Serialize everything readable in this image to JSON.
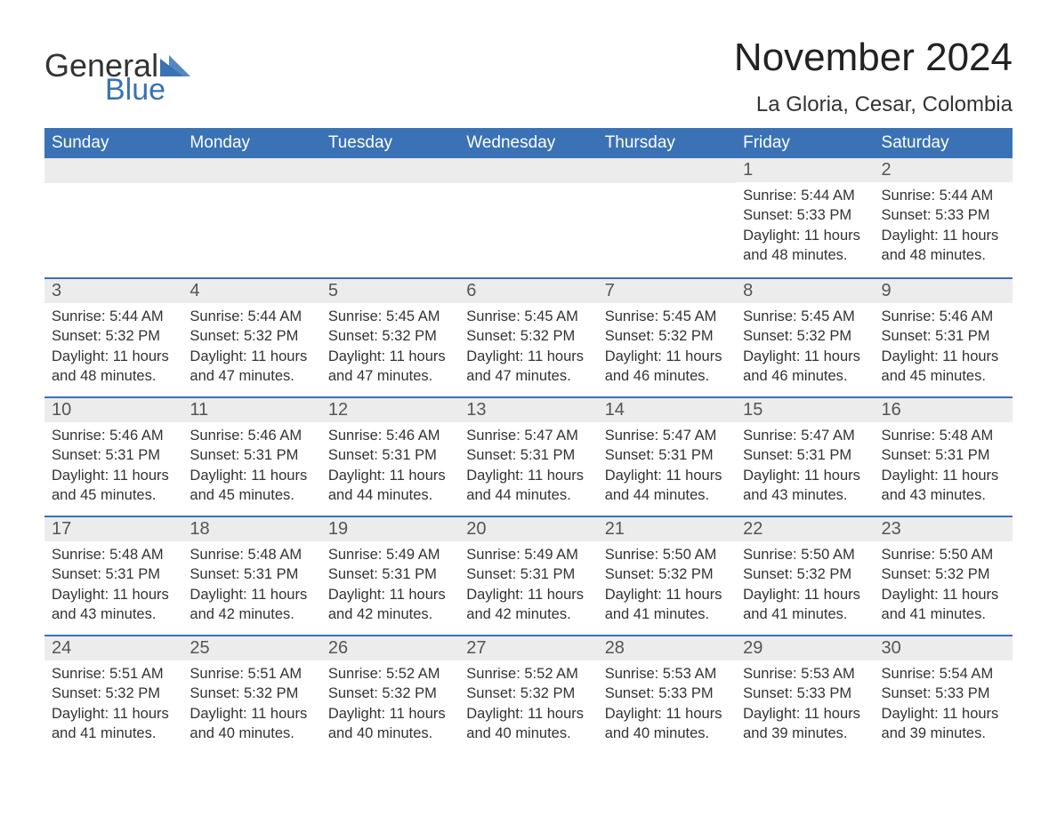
{
  "logo": {
    "word1": "General",
    "word2": "Blue"
  },
  "title": "November 2024",
  "location": "La Gloria, Cesar, Colombia",
  "colors": {
    "header_bg": "#3a72b5",
    "header_text": "#ffffff",
    "daynum_bg": "#ececec",
    "row_divider": "#3a72b5",
    "body_text": "#333333",
    "logo_blue": "#3a72b5"
  },
  "fonts": {
    "title_size_pt": 33,
    "location_size_pt": 18,
    "header_size_pt": 14,
    "daynum_size_pt": 15,
    "body_size_pt": 12
  },
  "weekdays": [
    "Sunday",
    "Monday",
    "Tuesday",
    "Wednesday",
    "Thursday",
    "Friday",
    "Saturday"
  ],
  "labels": {
    "sunrise": "Sunrise:",
    "sunset": "Sunset:",
    "daylight": "Daylight:"
  },
  "weeks": [
    [
      null,
      null,
      null,
      null,
      null,
      {
        "n": "1",
        "sunrise": "5:44 AM",
        "sunset": "5:33 PM",
        "daylight": "11 hours and 48 minutes."
      },
      {
        "n": "2",
        "sunrise": "5:44 AM",
        "sunset": "5:33 PM",
        "daylight": "11 hours and 48 minutes."
      }
    ],
    [
      {
        "n": "3",
        "sunrise": "5:44 AM",
        "sunset": "5:32 PM",
        "daylight": "11 hours and 48 minutes."
      },
      {
        "n": "4",
        "sunrise": "5:44 AM",
        "sunset": "5:32 PM",
        "daylight": "11 hours and 47 minutes."
      },
      {
        "n": "5",
        "sunrise": "5:45 AM",
        "sunset": "5:32 PM",
        "daylight": "11 hours and 47 minutes."
      },
      {
        "n": "6",
        "sunrise": "5:45 AM",
        "sunset": "5:32 PM",
        "daylight": "11 hours and 47 minutes."
      },
      {
        "n": "7",
        "sunrise": "5:45 AM",
        "sunset": "5:32 PM",
        "daylight": "11 hours and 46 minutes."
      },
      {
        "n": "8",
        "sunrise": "5:45 AM",
        "sunset": "5:32 PM",
        "daylight": "11 hours and 46 minutes."
      },
      {
        "n": "9",
        "sunrise": "5:46 AM",
        "sunset": "5:31 PM",
        "daylight": "11 hours and 45 minutes."
      }
    ],
    [
      {
        "n": "10",
        "sunrise": "5:46 AM",
        "sunset": "5:31 PM",
        "daylight": "11 hours and 45 minutes."
      },
      {
        "n": "11",
        "sunrise": "5:46 AM",
        "sunset": "5:31 PM",
        "daylight": "11 hours and 45 minutes."
      },
      {
        "n": "12",
        "sunrise": "5:46 AM",
        "sunset": "5:31 PM",
        "daylight": "11 hours and 44 minutes."
      },
      {
        "n": "13",
        "sunrise": "5:47 AM",
        "sunset": "5:31 PM",
        "daylight": "11 hours and 44 minutes."
      },
      {
        "n": "14",
        "sunrise": "5:47 AM",
        "sunset": "5:31 PM",
        "daylight": "11 hours and 44 minutes."
      },
      {
        "n": "15",
        "sunrise": "5:47 AM",
        "sunset": "5:31 PM",
        "daylight": "11 hours and 43 minutes."
      },
      {
        "n": "16",
        "sunrise": "5:48 AM",
        "sunset": "5:31 PM",
        "daylight": "11 hours and 43 minutes."
      }
    ],
    [
      {
        "n": "17",
        "sunrise": "5:48 AM",
        "sunset": "5:31 PM",
        "daylight": "11 hours and 43 minutes."
      },
      {
        "n": "18",
        "sunrise": "5:48 AM",
        "sunset": "5:31 PM",
        "daylight": "11 hours and 42 minutes."
      },
      {
        "n": "19",
        "sunrise": "5:49 AM",
        "sunset": "5:31 PM",
        "daylight": "11 hours and 42 minutes."
      },
      {
        "n": "20",
        "sunrise": "5:49 AM",
        "sunset": "5:31 PM",
        "daylight": "11 hours and 42 minutes."
      },
      {
        "n": "21",
        "sunrise": "5:50 AM",
        "sunset": "5:32 PM",
        "daylight": "11 hours and 41 minutes."
      },
      {
        "n": "22",
        "sunrise": "5:50 AM",
        "sunset": "5:32 PM",
        "daylight": "11 hours and 41 minutes."
      },
      {
        "n": "23",
        "sunrise": "5:50 AM",
        "sunset": "5:32 PM",
        "daylight": "11 hours and 41 minutes."
      }
    ],
    [
      {
        "n": "24",
        "sunrise": "5:51 AM",
        "sunset": "5:32 PM",
        "daylight": "11 hours and 41 minutes."
      },
      {
        "n": "25",
        "sunrise": "5:51 AM",
        "sunset": "5:32 PM",
        "daylight": "11 hours and 40 minutes."
      },
      {
        "n": "26",
        "sunrise": "5:52 AM",
        "sunset": "5:32 PM",
        "daylight": "11 hours and 40 minutes."
      },
      {
        "n": "27",
        "sunrise": "5:52 AM",
        "sunset": "5:32 PM",
        "daylight": "11 hours and 40 minutes."
      },
      {
        "n": "28",
        "sunrise": "5:53 AM",
        "sunset": "5:33 PM",
        "daylight": "11 hours and 40 minutes."
      },
      {
        "n": "29",
        "sunrise": "5:53 AM",
        "sunset": "5:33 PM",
        "daylight": "11 hours and 39 minutes."
      },
      {
        "n": "30",
        "sunrise": "5:54 AM",
        "sunset": "5:33 PM",
        "daylight": "11 hours and 39 minutes."
      }
    ]
  ]
}
